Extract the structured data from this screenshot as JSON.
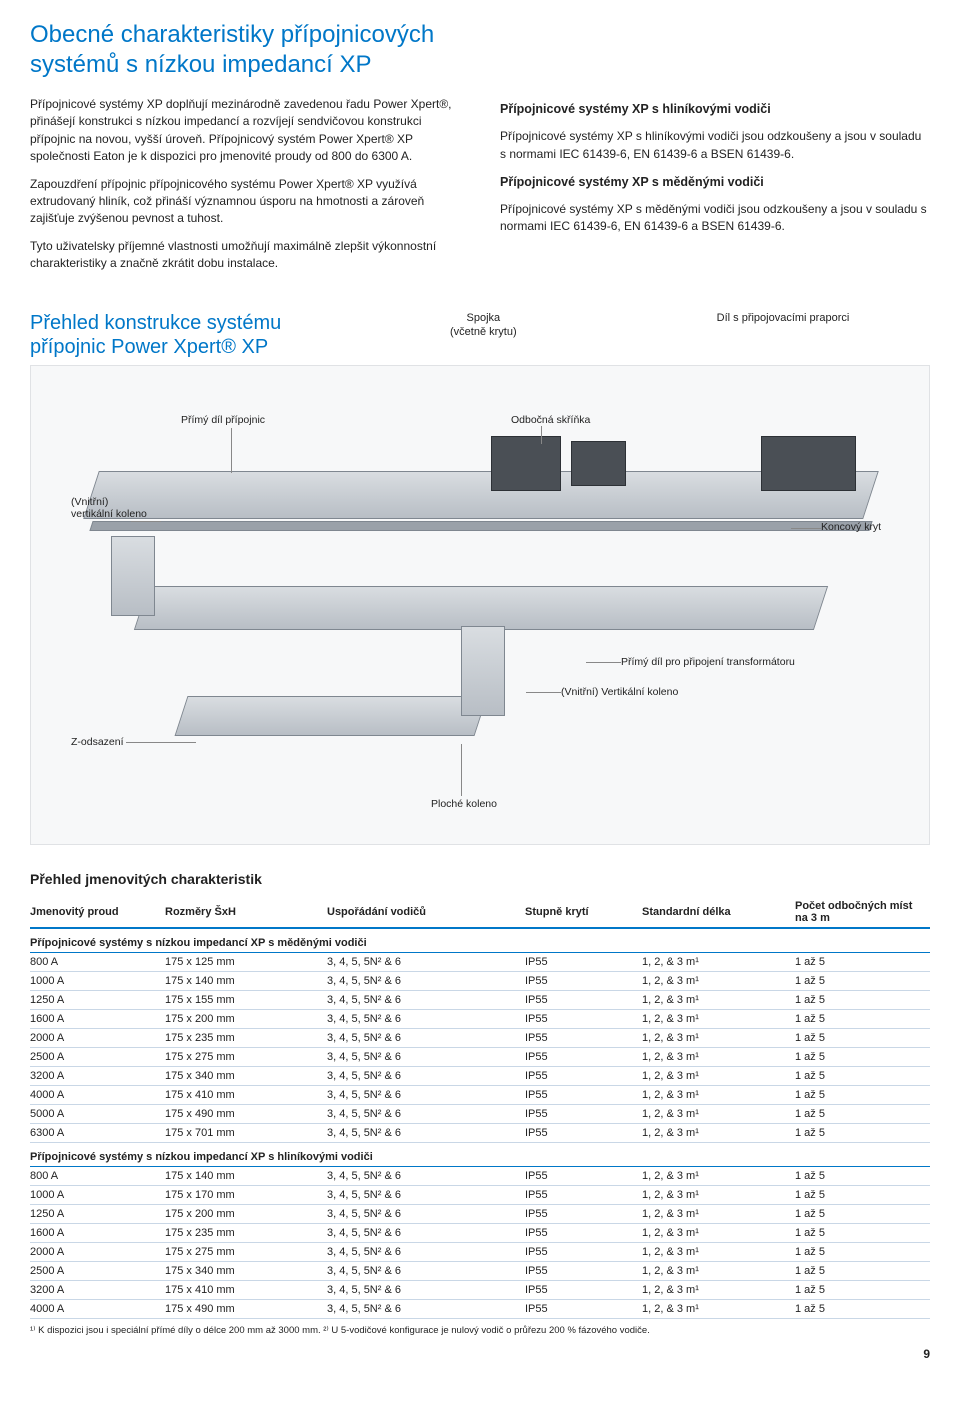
{
  "title": "Obecné charakteristiky přípojnicových systémů s nízkou impedancí XP",
  "left_col": {
    "p1": "Přípojnicové systémy XP doplňují mezinárodně zavedenou řadu Power Xpert®, přinášejí konstrukci s nízkou impedancí a rozvíjejí sendvičovou konstrukci přípojnic na novou, vyšší úroveň. Přípojnicový systém Power Xpert® XP společnosti Eaton je k dispozici pro jmenovité proudy od 800 do 6300 A.",
    "p2": "Zapouzdření přípojnic přípojnicového systému Power Xpert® XP využívá extrudovaný hliník, což přináší významnou úsporu na hmotnosti a zároveň zajišťuje zvýšenou pevnost a tuhost.",
    "p3": "Tyto uživatelsky příjemné vlastnosti umožňují maximálně zlepšit výkonnostní charakteristiky a značně zkrátit dobu instalace."
  },
  "right_col": {
    "h1": "Přípojnicové systémy XP s hliníkovými vodiči",
    "p1": "Přípojnicové systémy XP s hliníkovými vodiči jsou odzkoušeny a jsou v souladu s normami IEC 61439-6, EN 61439-6 a BSEN 61439-6.",
    "h2": "Přípojnicové systémy XP s měděnými vodiči",
    "p2": "Přípojnicové systémy XP s měděnými vodiči jsou odzkoušeny a jsou v souladu s normami IEC 61439-6, EN 61439-6 a BSEN 61439-6."
  },
  "diagram": {
    "title": "Přehled konstrukce systému přípojnic Power Xpert® XP",
    "labels": {
      "spojka": "Spojka",
      "spojka_sub": "(včetně krytu)",
      "dil_praporci": "Díl s připojovacími praporci",
      "primy_dil": "Přímý díl přípojnic",
      "odbocna": "Odbočná skříňka",
      "vnitrni_vert": "(Vnitřní)",
      "vnitrni_vert2": "vertikální koleno",
      "koncovy": "Koncový kryt",
      "primy_transf": "Přímý díl pro připojení transformátoru",
      "vnitrni_vertk": "(Vnitřní) Vertikální koleno",
      "z_odsazeni": "Z-odsazení",
      "ploche": "Ploché koleno"
    }
  },
  "table": {
    "title": "Přehled jmenovitých charakteristik",
    "columns": [
      "Jmenovitý proud",
      "Rozměry ŠxH",
      "Uspořádání vodičů",
      "Stupně krytí",
      "Standardní délka",
      "Počet odbočných míst na 3 m"
    ],
    "group1": "Přípojnicové systémy s nízkou impedancí XP s měděnými vodiči",
    "rows1": [
      [
        "800 A",
        "175 x 125 mm",
        "3, 4, 5, 5N² & 6",
        "IP55",
        "1, 2, & 3 m¹",
        "1 až 5"
      ],
      [
        "1000 A",
        "175 x 140 mm",
        "3, 4, 5, 5N² & 6",
        "IP55",
        "1, 2, & 3 m¹",
        "1 až 5"
      ],
      [
        "1250 A",
        "175 x 155 mm",
        "3, 4, 5, 5N² & 6",
        "IP55",
        "1, 2, & 3 m¹",
        "1 až 5"
      ],
      [
        "1600 A",
        "175 x 200 mm",
        "3, 4, 5, 5N² & 6",
        "IP55",
        "1, 2, & 3 m¹",
        "1 až 5"
      ],
      [
        "2000 A",
        "175 x 235 mm",
        "3, 4, 5, 5N² & 6",
        "IP55",
        "1, 2, & 3 m¹",
        "1 až 5"
      ],
      [
        "2500 A",
        "175 x 275 mm",
        "3, 4, 5, 5N² & 6",
        "IP55",
        "1, 2, & 3 m¹",
        "1 až 5"
      ],
      [
        "3200 A",
        "175 x 340 mm",
        "3, 4, 5, 5N² & 6",
        "IP55",
        "1, 2, & 3 m¹",
        "1 až 5"
      ],
      [
        "4000 A",
        "175 x 410 mm",
        "3, 4, 5, 5N² & 6",
        "IP55",
        "1, 2, & 3 m¹",
        "1 až 5"
      ],
      [
        "5000 A",
        "175 x 490 mm",
        "3, 4, 5, 5N² & 6",
        "IP55",
        "1, 2, & 3 m¹",
        "1 až 5"
      ],
      [
        "6300 A",
        "175 x 701 mm",
        "3, 4, 5, 5N² & 6",
        "IP55",
        "1, 2, & 3 m¹",
        "1 až 5"
      ]
    ],
    "group2": "Přípojnicové systémy s nízkou impedancí XP s hliníkovými vodiči",
    "rows2": [
      [
        "800 A",
        "175 x 140 mm",
        "3, 4, 5, 5N² & 6",
        "IP55",
        "1, 2, & 3 m¹",
        "1 až 5"
      ],
      [
        "1000 A",
        "175 x 170 mm",
        "3, 4, 5, 5N² & 6",
        "IP55",
        "1, 2, & 3 m¹",
        "1 až 5"
      ],
      [
        "1250 A",
        "175 x 200 mm",
        "3, 4, 5, 5N² & 6",
        "IP55",
        "1, 2, & 3 m¹",
        "1 až 5"
      ],
      [
        "1600 A",
        "175 x 235 mm",
        "3, 4, 5, 5N² & 6",
        "IP55",
        "1, 2, & 3 m¹",
        "1 až 5"
      ],
      [
        "2000 A",
        "175 x 275 mm",
        "3, 4, 5, 5N² & 6",
        "IP55",
        "1, 2, & 3 m¹",
        "1 až 5"
      ],
      [
        "2500 A",
        "175 x 340 mm",
        "3, 4, 5, 5N² & 6",
        "IP55",
        "1, 2, & 3 m¹",
        "1 až 5"
      ],
      [
        "3200 A",
        "175 x 410 mm",
        "3, 4, 5, 5N² & 6",
        "IP55",
        "1, 2, & 3 m¹",
        "1 až 5"
      ],
      [
        "4000 A",
        "175 x 490 mm",
        "3, 4, 5, 5N² & 6",
        "IP55",
        "1, 2, & 3 m¹",
        "1 až 5"
      ]
    ],
    "footnote": "¹⁾ K dispozici jsou i speciální přímé díly o délce 200 mm až 3000 mm.  ²⁾ U 5-vodičové konfigurace je nulový vodič o průřezu 200 % fázového vodiče."
  },
  "page_num": "9"
}
